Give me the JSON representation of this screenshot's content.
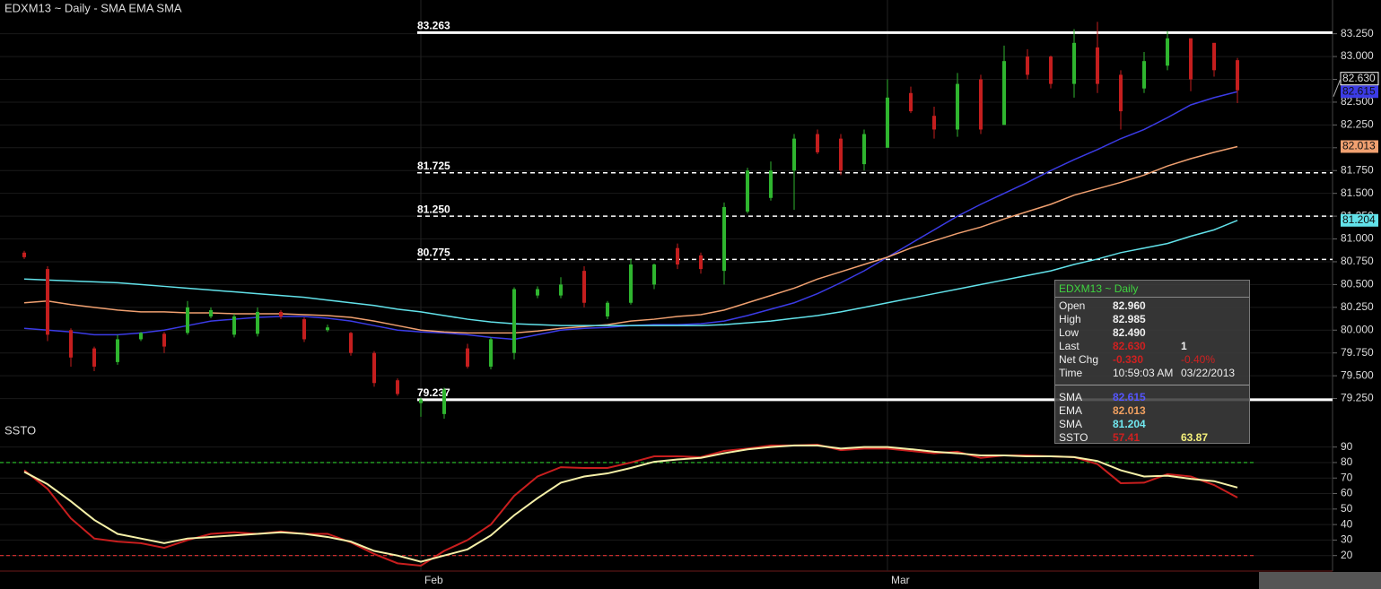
{
  "chart_data": [
    {
      "type": "candlestick",
      "title": "EDXM13 ~ Daily  -  SMA EMA SMA",
      "categories": [
        null,
        null,
        null,
        null,
        null,
        null,
        null,
        null,
        null,
        null,
        null,
        null,
        null,
        null,
        null,
        null,
        null,
        "Feb",
        null,
        null,
        null,
        null,
        null,
        null,
        null,
        null,
        null,
        null,
        null,
        null,
        null,
        null,
        null,
        null,
        null,
        null,
        null,
        "Mar",
        null,
        null,
        null,
        null,
        null,
        null,
        null,
        null,
        null,
        null,
        null,
        null,
        null,
        null,
        null
      ],
      "open": [
        80.85,
        80.67,
        80.0,
        79.8,
        79.65,
        79.9,
        79.96,
        79.97,
        80.15,
        79.95,
        79.96,
        80.2,
        80.12,
        80.0,
        79.97,
        79.75,
        79.45,
        79.2,
        79.08,
        79.8,
        79.6,
        79.75,
        80.38,
        80.38,
        80.65,
        80.15,
        80.3,
        80.5,
        80.9,
        80.82,
        80.65,
        81.3,
        81.45,
        81.75,
        82.15,
        82.1,
        81.82,
        82.0,
        82.6,
        82.35,
        82.2,
        82.75,
        82.25,
        83.0,
        83.0,
        82.7,
        83.1,
        82.8,
        82.65,
        82.9,
        83.2,
        83.15,
        82.96
      ],
      "high": [
        80.87,
        80.7,
        80.02,
        79.82,
        79.95,
        79.98,
        79.98,
        80.32,
        80.25,
        80.18,
        80.25,
        80.22,
        80.14,
        80.06,
        79.98,
        79.77,
        79.47,
        79.26,
        79.37,
        79.85,
        79.92,
        80.47,
        80.48,
        80.58,
        80.7,
        80.32,
        80.78,
        80.73,
        80.95,
        80.85,
        81.4,
        81.78,
        81.85,
        82.15,
        82.2,
        82.15,
        82.2,
        82.75,
        82.67,
        82.45,
        82.82,
        82.8,
        83.12,
        83.08,
        83.01,
        83.3,
        83.38,
        82.85,
        83.05,
        83.28,
        83.2,
        83.15,
        82.985
      ],
      "low": [
        80.78,
        79.88,
        79.6,
        79.55,
        79.62,
        79.88,
        79.75,
        79.95,
        80.13,
        79.92,
        79.93,
        80.12,
        79.87,
        79.98,
        79.72,
        79.38,
        79.28,
        79.05,
        79.03,
        79.58,
        79.57,
        79.68,
        80.35,
        80.35,
        80.25,
        80.12,
        80.28,
        80.45,
        80.67,
        80.62,
        80.5,
        81.28,
        81.42,
        81.32,
        81.93,
        81.7,
        81.75,
        82.0,
        82.38,
        82.1,
        82.12,
        82.15,
        82.25,
        82.75,
        82.65,
        82.55,
        82.6,
        82.2,
        82.6,
        82.85,
        82.62,
        82.78,
        82.49
      ],
      "close": [
        80.8,
        79.95,
        79.7,
        79.6,
        79.9,
        79.97,
        79.82,
        80.25,
        80.22,
        80.15,
        80.2,
        80.15,
        79.9,
        80.03,
        79.75,
        79.42,
        79.3,
        79.24,
        79.35,
        79.6,
        79.9,
        80.45,
        80.45,
        80.5,
        80.3,
        80.3,
        80.72,
        80.72,
        80.72,
        80.67,
        81.35,
        81.75,
        81.75,
        82.1,
        81.95,
        81.75,
        82.15,
        82.55,
        82.4,
        82.2,
        82.7,
        82.2,
        82.95,
        82.8,
        82.7,
        83.15,
        82.7,
        82.4,
        82.95,
        83.2,
        82.75,
        82.85,
        82.63
      ],
      "up_color": "#2fb52f",
      "down_color": "#c41e1e",
      "series": [
        {
          "color": "#3b3be6",
          "values": [
            80.02,
            80.0,
            79.98,
            79.95,
            79.95,
            79.97,
            80.0,
            80.05,
            80.1,
            80.12,
            80.14,
            80.15,
            80.15,
            80.13,
            80.1,
            80.05,
            80.0,
            79.98,
            79.97,
            79.95,
            79.92,
            79.9,
            79.95,
            80.0,
            80.02,
            80.03,
            80.05,
            80.06,
            80.06,
            80.07,
            80.1,
            80.16,
            80.23,
            80.3,
            80.4,
            80.52,
            80.65,
            80.8,
            80.95,
            81.1,
            81.25,
            81.38,
            81.5,
            81.62,
            81.75,
            81.87,
            81.98,
            82.1,
            82.2,
            82.33,
            82.47,
            82.55,
            82.615
          ]
        },
        {
          "color": "#f0a070",
          "values": [
            80.3,
            80.32,
            80.28,
            80.25,
            80.22,
            80.2,
            80.2,
            80.19,
            80.19,
            80.18,
            80.18,
            80.18,
            80.17,
            80.16,
            80.14,
            80.1,
            80.05,
            80.0,
            79.98,
            79.97,
            79.97,
            79.97,
            79.99,
            80.02,
            80.04,
            80.06,
            80.1,
            80.12,
            80.15,
            80.17,
            80.22,
            80.3,
            80.38,
            80.46,
            80.56,
            80.64,
            80.72,
            80.8,
            80.9,
            80.98,
            81.06,
            81.13,
            81.22,
            81.3,
            81.38,
            81.48,
            81.55,
            81.62,
            81.7,
            81.8,
            81.88,
            81.95,
            82.013
          ]
        },
        {
          "color": "#62e2ea",
          "values": [
            80.56,
            80.55,
            80.54,
            80.53,
            80.52,
            80.5,
            80.48,
            80.46,
            80.44,
            80.42,
            80.4,
            80.38,
            80.36,
            80.33,
            80.3,
            80.27,
            80.23,
            80.2,
            80.16,
            80.12,
            80.09,
            80.07,
            80.06,
            80.05,
            80.05,
            80.05,
            80.05,
            80.05,
            80.05,
            80.05,
            80.06,
            80.08,
            80.1,
            80.13,
            80.16,
            80.2,
            80.25,
            80.3,
            80.35,
            80.4,
            80.45,
            80.5,
            80.55,
            80.6,
            80.65,
            80.72,
            80.78,
            80.85,
            80.9,
            80.95,
            81.03,
            81.1,
            81.204
          ]
        }
      ],
      "ylim": [
        79.0,
        83.62
      ],
      "yticks": [
        {
          "value": 79.25,
          "label": "79.250"
        },
        {
          "value": 79.5,
          "label": "79.500"
        },
        {
          "value": 79.75,
          "label": "79.750"
        },
        {
          "value": 80,
          "label": "80.000"
        },
        {
          "value": 80.25,
          "label": "80.250"
        },
        {
          "value": 80.5,
          "label": "80.500"
        },
        {
          "value": 80.75,
          "label": "80.750"
        },
        {
          "value": 81,
          "label": "81.000"
        },
        {
          "value": 81.25,
          "label": "81.250"
        },
        {
          "value": 81.5,
          "label": "81.500"
        },
        {
          "value": 81.75,
          "label": "81.750"
        },
        {
          "value": 82,
          "label": "82.000"
        },
        {
          "value": 82.25,
          "label": "82.250"
        },
        {
          "value": 82.5,
          "label": "82.500"
        },
        {
          "value": 82.75,
          "label": "82.750"
        },
        {
          "value": 83,
          "label": "83.000"
        },
        {
          "value": 83.25,
          "label": "83.250"
        }
      ],
      "levels": [
        {
          "value": 83.263,
          "style": "solid"
        },
        {
          "value": 81.725,
          "style": "dashed"
        },
        {
          "value": {
            "value": 81.25,
            "label": "81.250"
          },
          "style": "dashed"
        },
        {
          "value": 80.775,
          "style": "dashed"
        },
        {
          "value": 79.237,
          "style": "solid"
        }
      ],
      "last": {
        "value": 82.63,
        "label": "82.630"
      },
      "grid": true
    },
    {
      "type": "line",
      "title": "SSTO",
      "series": [
        {
          "color": "#c81e1e",
          "values": [
            75,
            63,
            44,
            31,
            29,
            28,
            25,
            30,
            34,
            35,
            34,
            35.5,
            34,
            34,
            28.5,
            21,
            15,
            13.5,
            23,
            30,
            40,
            58.5,
            71,
            77,
            76.5,
            76.5,
            80,
            84,
            84,
            83.5,
            87.5,
            89,
            91,
            91,
            91.5,
            88,
            89,
            89,
            87.5,
            86,
            87,
            83,
            84.6,
            84.6,
            84,
            83.5,
            79,
            66.7,
            67,
            72.5,
            71,
            65.5,
            57.41
          ]
        },
        {
          "color": "#f5f0a8",
          "values": [
            74,
            66,
            55,
            43,
            34,
            31,
            28,
            31,
            32,
            33,
            34,
            35,
            34,
            32,
            29,
            23,
            20,
            16,
            20,
            24,
            33,
            46,
            57,
            67,
            71,
            73,
            76.5,
            80.5,
            82,
            83,
            86,
            88.5,
            90,
            91,
            91,
            89,
            90,
            90,
            88.6,
            87,
            86,
            84.6,
            84.6,
            84,
            84,
            83.5,
            81,
            75,
            71,
            71.5,
            69.5,
            68,
            63.87
          ]
        }
      ],
      "ylim": [
        10,
        95
      ],
      "yticks": [
        20,
        30,
        40,
        50,
        60,
        70,
        80,
        90
      ],
      "levels": [
        {
          "value": 80,
          "color": "#2ecc2e"
        },
        {
          "value": 20,
          "color": "#e03030"
        }
      ]
    }
  ],
  "tooltip": {
    "title": "EDXM13 ~ Daily",
    "rows": [
      [
        "Open",
        "82.960"
      ],
      [
        "High",
        "82.985"
      ],
      [
        "Low",
        "82.490"
      ],
      [
        "Last",
        "82.630",
        "1"
      ],
      [
        "Net Chg",
        "-0.330",
        "-0.40%"
      ],
      [
        "Time",
        "10:59:03 AM",
        "03/22/2013"
      ]
    ],
    "studies": [
      [
        "SMA",
        "82.615"
      ],
      [
        "EMA",
        "82.013"
      ],
      [
        "SMA",
        "81.204"
      ],
      [
        "SSTO",
        "57.41",
        "63.87"
      ]
    ]
  }
}
